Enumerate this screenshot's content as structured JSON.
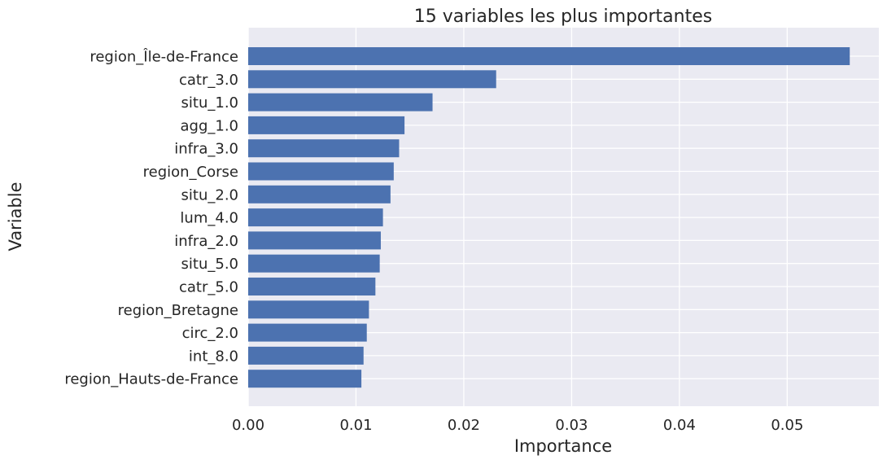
{
  "chart_data": {
    "type": "bar",
    "orientation": "horizontal",
    "title": "15 variables les plus importantes",
    "xlabel": "Importance",
    "ylabel": "Variable",
    "xlim": [
      0,
      0.0585
    ],
    "xticks": [
      0.0,
      0.01,
      0.02,
      0.03,
      0.04,
      0.05
    ],
    "xtick_labels": [
      "0.00",
      "0.01",
      "0.02",
      "0.03",
      "0.04",
      "0.05"
    ],
    "grid": true,
    "categories": [
      "region_Île-de-France",
      "catr_3.0",
      "situ_1.0",
      "agg_1.0",
      "infra_3.0",
      "region_Corse",
      "situ_2.0",
      "lum_4.0",
      "infra_2.0",
      "situ_5.0",
      "catr_5.0",
      "region_Bretagne",
      "circ_2.0",
      "int_8.0",
      "region_Hauts-de-France"
    ],
    "values": [
      0.0558,
      0.023,
      0.0171,
      0.0145,
      0.014,
      0.0135,
      0.0132,
      0.0125,
      0.0123,
      0.0122,
      0.0118,
      0.0112,
      0.011,
      0.0107,
      0.0105
    ],
    "colors": {
      "bar": "#4c72b0",
      "plot_background": "#eaeaf2",
      "grid": "#ffffff",
      "text": "#262626"
    }
  }
}
